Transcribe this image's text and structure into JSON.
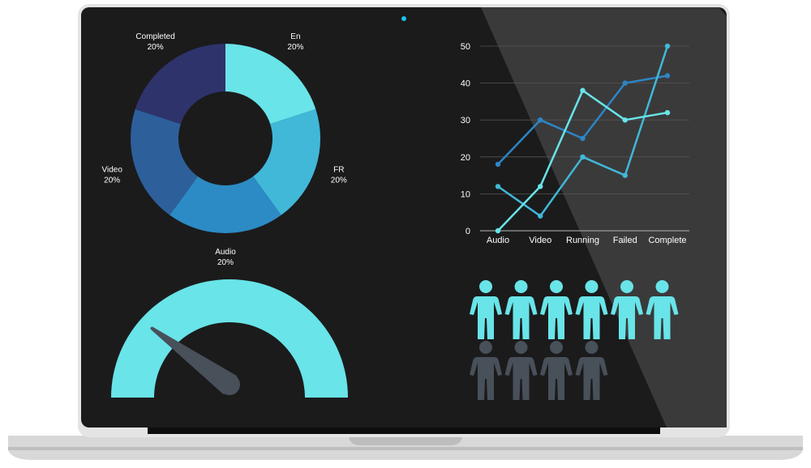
{
  "colors": {
    "bezel": "#e4e4e4",
    "screen": "#1b1b1c",
    "glare": "#3a3a3b",
    "base": "#d8d8d8",
    "camera": "#19c3e6",
    "gauge_fill": "#69e4e8",
    "gauge_needle": "#48505a",
    "person_active": "#69e4e8",
    "person_inactive": "#48505a",
    "grid": "#555555"
  },
  "icons": {
    "person": "person-icon"
  },
  "chart_data": [
    {
      "type": "pie",
      "donut": true,
      "slices": [
        {
          "label": "En",
          "value": 20,
          "value_label": "20%",
          "color": "#69e4e8"
        },
        {
          "label": "FR",
          "value": 20,
          "value_label": "20%",
          "color": "#41b8d8"
        },
        {
          "label": "Audio",
          "value": 20,
          "value_label": "20%",
          "color": "#2c8bc4"
        },
        {
          "label": "Video",
          "value": 20,
          "value_label": "20%",
          "color": "#2d5f9b"
        },
        {
          "label": "Completed",
          "value": 20,
          "value_label": "20%",
          "color": "#2f336b"
        }
      ]
    },
    {
      "type": "line",
      "categories": [
        "Audio",
        "Video",
        "Running",
        "Failed",
        "Complete"
      ],
      "ylim": [
        0,
        50
      ],
      "yticks": [
        0,
        10,
        20,
        30,
        40,
        50
      ],
      "grid": true,
      "series": [
        {
          "values": [
            18,
            30,
            25,
            40,
            42
          ],
          "color": "#2d85c4"
        },
        {
          "values": [
            12,
            4,
            20,
            15,
            50
          ],
          "color": "#41b8d8"
        },
        {
          "values": [
            0,
            12,
            38,
            30,
            32
          ],
          "color": "#69e4e8"
        }
      ]
    },
    {
      "type": "gauge",
      "value": 0.2
    },
    {
      "type": "pictograph",
      "active": 6,
      "inactive": 4
    }
  ]
}
